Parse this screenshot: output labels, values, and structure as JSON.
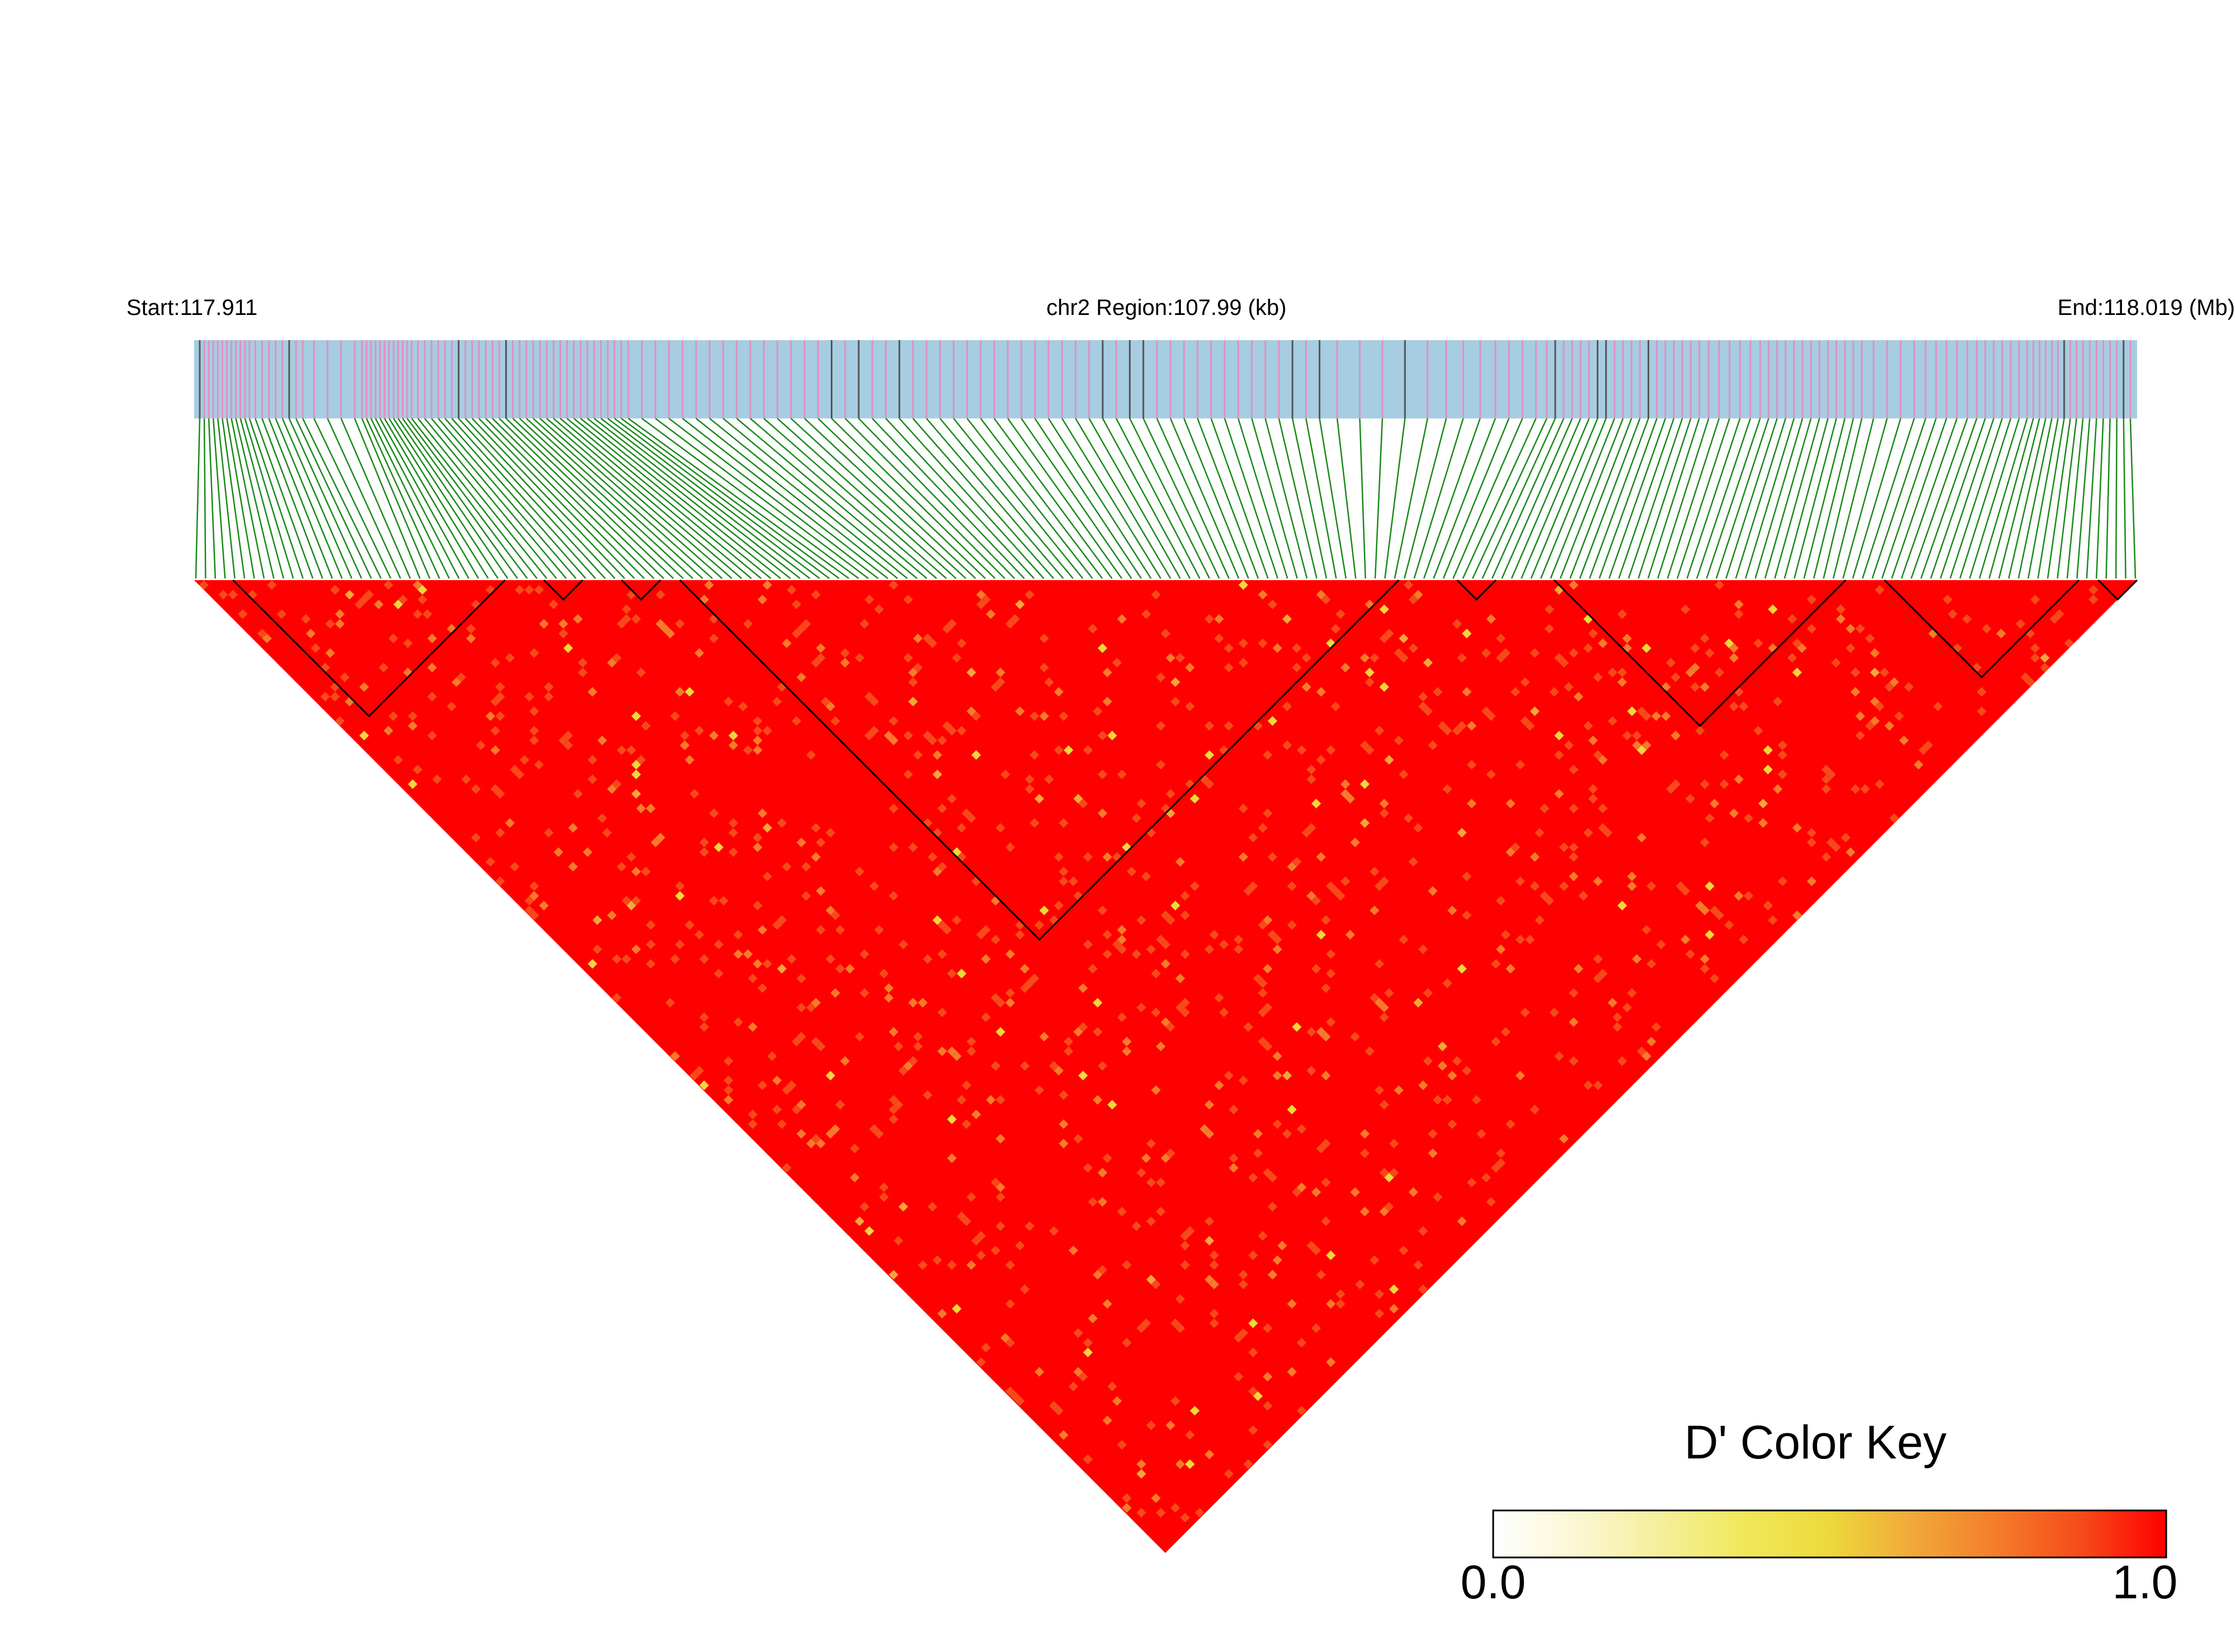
{
  "header": {
    "start_label": "Start:117.911",
    "region_label": "chr2 Region:107.99 (kb)",
    "end_label": "End:118.019 (Mb)"
  },
  "color_key": {
    "title": "D' Color Key",
    "min_label": "0.0",
    "max_label": "1.0",
    "gradient": [
      "#ffffff",
      "#fbf7d2",
      "#f5ef9a",
      "#f0e85a",
      "#ecd93c",
      "#f1a83a",
      "#f47c2a",
      "#f64a1a",
      "#ff0000"
    ]
  },
  "chart_data": {
    "type": "heatmap",
    "title": "",
    "xlabel": "",
    "ylabel": "",
    "position_range_mb": [
      117.911,
      118.019
    ],
    "region_length_kb": 107.99,
    "chromosome": "chr2",
    "value_range": [
      0.0,
      1.0
    ],
    "dominant_value": 1.0,
    "haplotype_blocks_fraction": [
      [
        0.02,
        0.16
      ],
      [
        0.18,
        0.2
      ],
      [
        0.22,
        0.24
      ],
      [
        0.25,
        0.62
      ],
      [
        0.65,
        0.67
      ],
      [
        0.7,
        0.85
      ],
      [
        0.87,
        0.97
      ],
      [
        0.98,
        1.0
      ]
    ]
  },
  "colors": {
    "track_background": "#a6cde2",
    "snp_marker_pink": "#e38fc2",
    "snp_marker_dark": "#555555",
    "connector_lines": "#1a8a1a",
    "heatmap_base": "#ff0000",
    "block_outline": "#000000"
  }
}
